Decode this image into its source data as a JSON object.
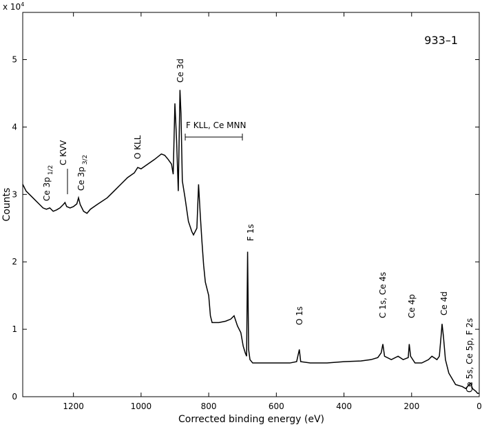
{
  "chart_data": {
    "type": "line",
    "sample_label": "933–1",
    "x_label": "Corrected binding energy (eV)",
    "y_label": "Counts",
    "y_multiplier": {
      "base": "x 10",
      "exponent": "4"
    },
    "xlim": [
      1350,
      0
    ],
    "xticks": [
      1200,
      1000,
      800,
      600,
      400,
      200,
      0
    ],
    "ylim": [
      0,
      5.7
    ],
    "yticks": [
      0,
      1,
      2,
      3,
      4,
      5
    ],
    "color": "#000000",
    "x": [
      1350,
      1340,
      1320,
      1300,
      1290,
      1280,
      1270,
      1260,
      1250,
      1240,
      1230,
      1225,
      1220,
      1210,
      1200,
      1190,
      1185,
      1180,
      1170,
      1160,
      1150,
      1130,
      1100,
      1080,
      1060,
      1040,
      1020,
      1010,
      1000,
      980,
      960,
      940,
      930,
      920,
      910,
      905,
      900,
      895,
      890,
      885,
      882,
      878,
      870,
      860,
      850,
      845,
      835,
      830,
      825,
      820,
      815,
      810,
      800,
      795,
      790,
      770,
      750,
      735,
      725,
      715,
      705,
      698,
      692,
      688,
      685,
      682,
      678,
      670,
      650,
      600,
      560,
      540,
      532,
      528,
      500,
      450,
      400,
      350,
      320,
      300,
      290,
      285,
      280,
      260,
      240,
      225,
      210,
      207,
      203,
      190,
      170,
      150,
      140,
      125,
      118,
      112,
      110,
      106,
      100,
      90,
      70,
      50,
      40,
      30,
      25,
      20,
      15,
      10,
      5,
      0
    ],
    "values": [
      3.15,
      3.05,
      2.95,
      2.85,
      2.8,
      2.78,
      2.8,
      2.75,
      2.77,
      2.8,
      2.85,
      2.88,
      2.82,
      2.8,
      2.82,
      2.86,
      2.95,
      2.85,
      2.75,
      2.72,
      2.78,
      2.85,
      2.95,
      3.05,
      3.15,
      3.25,
      3.32,
      3.4,
      3.38,
      3.45,
      3.52,
      3.6,
      3.58,
      3.52,
      3.45,
      3.3,
      4.35,
      3.8,
      3.05,
      4.55,
      4.2,
      3.2,
      2.95,
      2.6,
      2.45,
      2.4,
      2.5,
      3.15,
      2.7,
      2.3,
      1.95,
      1.7,
      1.5,
      1.2,
      1.1,
      1.1,
      1.12,
      1.15,
      1.2,
      1.05,
      0.95,
      0.75,
      0.65,
      0.6,
      2.15,
      0.7,
      0.55,
      0.5,
      0.5,
      0.5,
      0.5,
      0.52,
      0.7,
      0.52,
      0.5,
      0.5,
      0.52,
      0.53,
      0.55,
      0.58,
      0.65,
      0.78,
      0.6,
      0.55,
      0.6,
      0.55,
      0.58,
      0.78,
      0.6,
      0.5,
      0.5,
      0.55,
      0.6,
      0.55,
      0.6,
      0.95,
      1.08,
      0.9,
      0.55,
      0.35,
      0.18,
      0.15,
      0.12,
      0.18,
      0.2,
      0.12,
      0.1,
      0.08,
      0.05,
      0.05
    ],
    "annotations": [
      {
        "label": "Ce 3p",
        "subscript": "1/2"
      },
      {
        "label": "C KVV"
      },
      {
        "label": "Ce 3p",
        "subscript": "3/2"
      },
      {
        "label": "O KLL"
      },
      {
        "label": "Ce 3d"
      },
      {
        "label": "F KLL, Ce MNN"
      },
      {
        "label": "F 1s"
      },
      {
        "label": "O 1s"
      },
      {
        "label": "C 1s, Ce 4s"
      },
      {
        "label": "Ce 4p"
      },
      {
        "label": "Ce 4d"
      },
      {
        "label": "Ce 5s, Ce 5p, F 2s"
      }
    ]
  }
}
